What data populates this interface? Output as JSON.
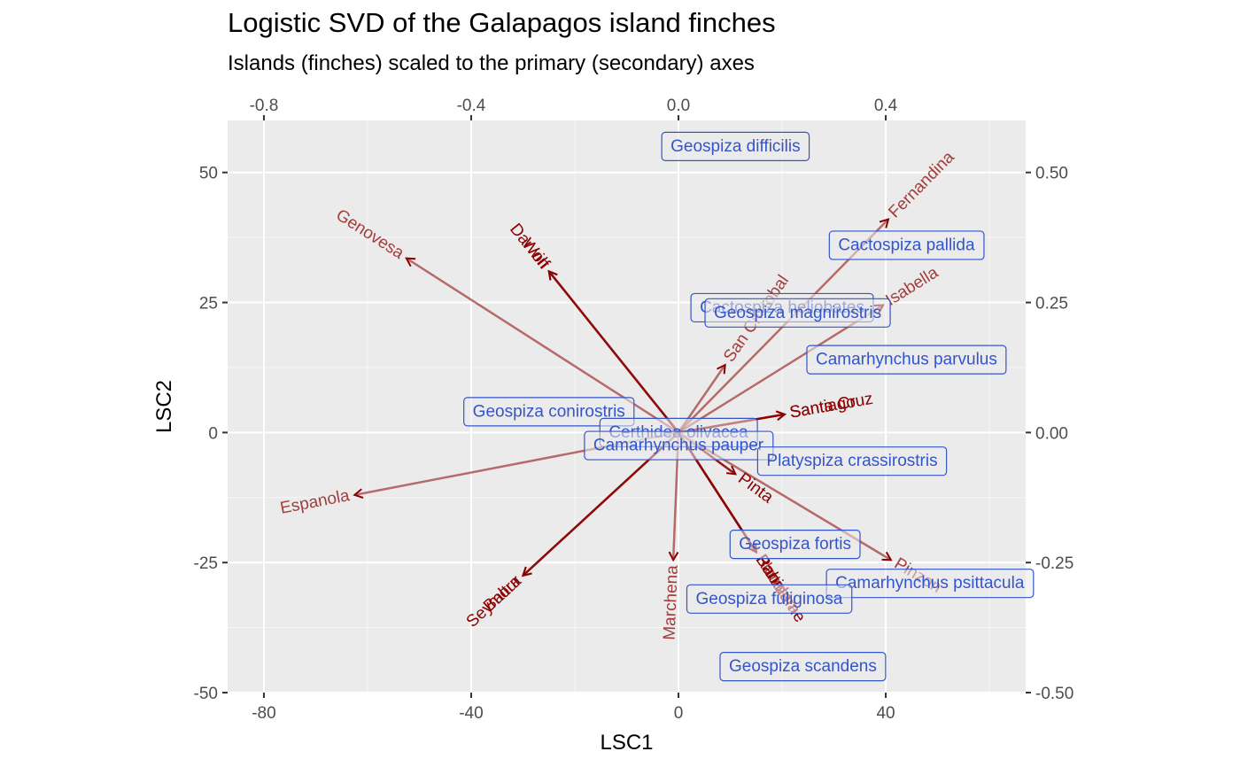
{
  "title": "Logistic SVD of the Galapagos island finches",
  "subtitle": "Islands (finches) scaled to the primary (secondary) axes",
  "chart_data": {
    "type": "biplot",
    "title": "Logistic SVD of the Galapagos island finches",
    "subtitle": "Islands (finches) scaled to the primary (secondary) axes",
    "xlabel": "LSC1",
    "ylabel": "LSC2",
    "primary_axes": {
      "xlim": [
        -87,
        67
      ],
      "ylim": [
        -50,
        60
      ],
      "xticks": [
        -80,
        -40,
        0,
        40
      ],
      "xtick_labels": [
        "-80",
        "-40",
        "0",
        "40"
      ],
      "yticks": [
        -50,
        -25,
        0,
        25,
        50
      ],
      "ytick_labels": [
        "-50",
        "-25",
        "0",
        "25",
        "50"
      ]
    },
    "secondary_axes": {
      "xlim": [
        -0.87,
        0.67
      ],
      "ylim": [
        -0.5,
        0.6
      ],
      "xticks": [
        -0.8,
        -0.4,
        0.0,
        0.4
      ],
      "xtick_labels": [
        "-0.8",
        "-0.4",
        "0.0",
        "0.4"
      ],
      "yticks": [
        -0.5,
        -0.25,
        0.0,
        0.25,
        0.5
      ],
      "ytick_labels": [
        "-0.50",
        "-0.25",
        "0.00",
        "0.25",
        "0.50"
      ]
    },
    "grid": true,
    "islands": [
      {
        "name": "Genovesa",
        "x": -52.5,
        "y": 33.5,
        "alpha": 0.55
      },
      {
        "name": "Darwin",
        "x": -25,
        "y": 31,
        "alpha": 0.8
      },
      {
        "name": "Wolf",
        "x": -25,
        "y": 31,
        "alpha": 0.8
      },
      {
        "name": "San Cristobal",
        "x": 9,
        "y": 13,
        "alpha": 0.55
      },
      {
        "name": "Fernandina",
        "x": 40.5,
        "y": 41,
        "alpha": 0.55
      },
      {
        "name": "Isabella",
        "x": 39.5,
        "y": 24.5,
        "alpha": 0.55
      },
      {
        "name": "Santa Cruz",
        "x": 20.5,
        "y": 3.5,
        "alpha": 0.9
      },
      {
        "name": "Santiago",
        "x": 20.5,
        "y": 3.5,
        "alpha": 0.9
      },
      {
        "name": "Espanola",
        "x": -62.5,
        "y": -12,
        "alpha": 0.55
      },
      {
        "name": "Baltra",
        "x": -30,
        "y": -27.5,
        "alpha": 0.8
      },
      {
        "name": "Seymour",
        "x": -30,
        "y": -27.5,
        "alpha": 0.8
      },
      {
        "name": "Marchena",
        "x": -1,
        "y": -24.5,
        "alpha": 0.55
      },
      {
        "name": "Pinta",
        "x": 11,
        "y": -8,
        "alpha": 0.9
      },
      {
        "name": "Floreana",
        "x": 15,
        "y": -23,
        "alpha": 0.55
      },
      {
        "name": "Rabida",
        "x": 15,
        "y": -23,
        "alpha": 0.8
      },
      {
        "name": "Bartolome",
        "x": 15,
        "y": -23,
        "alpha": 0.8
      },
      {
        "name": "Pinzon",
        "x": 41,
        "y": -24.5,
        "alpha": 0.55
      }
    ],
    "finches": [
      {
        "name": "Geospiza difficilis",
        "x": 0.11,
        "y": 0.55
      },
      {
        "name": "Cactospiza pallida",
        "x": 0.44,
        "y": 0.36
      },
      {
        "name": "Cactospiza heliobates",
        "x": 0.2,
        "y": 0.24
      },
      {
        "name": "Geospiza magnirostris",
        "x": 0.23,
        "y": 0.23
      },
      {
        "name": "Camarhynchus parvulus",
        "x": 0.44,
        "y": 0.14
      },
      {
        "name": "Geospiza conirostris",
        "x": -0.25,
        "y": 0.04
      },
      {
        "name": "Certhidea olivacea",
        "x": 0.0,
        "y": 0.0
      },
      {
        "name": "Camarhynchus pauper",
        "x": 0.0,
        "y": -0.025
      },
      {
        "name": "Platyspiza crassirostris",
        "x": 0.335,
        "y": -0.055
      },
      {
        "name": "Geospiza fortis",
        "x": 0.225,
        "y": -0.215
      },
      {
        "name": "Camarhynchus psittacula",
        "x": 0.485,
        "y": -0.29
      },
      {
        "name": "Geospiza fuliginosa",
        "x": 0.175,
        "y": -0.32
      },
      {
        "name": "Geospiza scandens",
        "x": 0.24,
        "y": -0.45
      }
    ]
  },
  "colors": {
    "panel_bg": "#ebebeb",
    "grid_major": "#ffffff",
    "island_color": "#8b0000",
    "finch_color": "#3355cc",
    "tick_text": "#4d4d4d"
  }
}
